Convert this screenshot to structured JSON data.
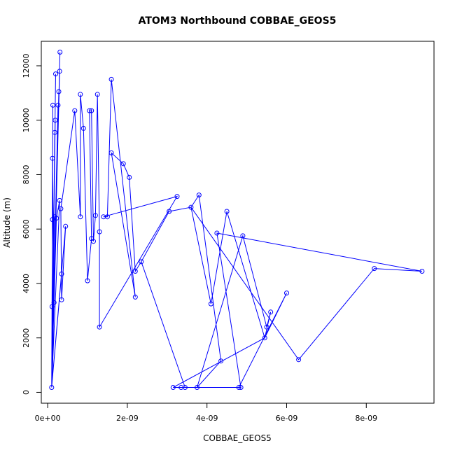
{
  "chart_data": {
    "type": "line",
    "title": "ATOM3 Northbound COBBAE_GEOS5",
    "xlabel": "COBBAE_GEOS5",
    "ylabel": "Altitude (m)",
    "xlim": [
      -1.6e-10,
      9.7e-09
    ],
    "ylim": [
      -400,
      12900
    ],
    "x_ticks": [
      {
        "value": 0,
        "label": "0e+00"
      },
      {
        "value": 2e-09,
        "label": "2e-09"
      },
      {
        "value": 4e-09,
        "label": "4e-09"
      },
      {
        "value": 6e-09,
        "label": "6e-09"
      },
      {
        "value": 8e-09,
        "label": "8e-09"
      }
    ],
    "y_ticks": [
      {
        "value": 0,
        "label": "0"
      },
      {
        "value": 2000,
        "label": "2000"
      },
      {
        "value": 4000,
        "label": "4000"
      },
      {
        "value": 6000,
        "label": "6000"
      },
      {
        "value": 8000,
        "label": "8000"
      },
      {
        "value": 10000,
        "label": "10000"
      },
      {
        "value": 12000,
        "label": "12000"
      }
    ],
    "series_color": "#0000ff",
    "grid": false,
    "series": [
      {
        "points": [
          [
            1e-10,
            180
          ],
          [
            1.1e-10,
            3150
          ],
          [
            1.2e-10,
            6350
          ],
          [
            1.2e-10,
            8600
          ],
          [
            1.3e-10,
            10550
          ],
          [
            1.6e-10,
            3300
          ],
          [
            1.7e-10,
            6450
          ],
          [
            1.8e-10,
            9550
          ],
          [
            1.9e-10,
            10000
          ],
          [
            2e-10,
            11700
          ],
          [
            2.2e-10,
            6400
          ],
          [
            2.6e-10,
            10550
          ],
          [
            2.8e-10,
            11050
          ],
          [
            3e-10,
            11800
          ],
          [
            3e-10,
            7050
          ],
          [
            3.1e-10,
            12500
          ],
          [
            3.3e-10,
            6750
          ],
          [
            3.5e-10,
            3400
          ],
          [
            3.5e-10,
            4350
          ],
          [
            4.5e-10,
            6100
          ],
          [
            6.8e-10,
            10350
          ],
          [
            8.2e-10,
            6450
          ],
          [
            8.2e-10,
            10950
          ],
          [
            9e-10,
            9700
          ],
          [
            1e-09,
            4100
          ],
          [
            1.05e-09,
            10350
          ],
          [
            1.1e-09,
            5650
          ],
          [
            1.1e-09,
            10350
          ],
          [
            1.15e-09,
            5550
          ],
          [
            1.2e-09,
            6500
          ],
          [
            1.25e-09,
            10950
          ],
          [
            1.3e-09,
            5900
          ],
          [
            1.3e-09,
            2400
          ],
          [
            1.4e-09,
            6450
          ],
          [
            1.5e-09,
            6450
          ],
          [
            1.6e-09,
            11500
          ],
          [
            1.6e-09,
            8800
          ],
          [
            1.9e-09,
            8400
          ],
          [
            2.05e-09,
            7900
          ],
          [
            2.2e-09,
            3500
          ],
          [
            2.2e-09,
            4450
          ],
          [
            2.35e-09,
            4800
          ],
          [
            3.05e-09,
            6650
          ],
          [
            3.15e-09,
            180
          ],
          [
            3.25e-09,
            7200
          ],
          [
            3.35e-09,
            180
          ],
          [
            3.45e-09,
            180
          ],
          [
            3.6e-09,
            6800
          ],
          [
            3.75e-09,
            180
          ],
          [
            3.8e-09,
            7250
          ],
          [
            4.1e-09,
            3250
          ],
          [
            4.25e-09,
            5850
          ],
          [
            4.35e-09,
            1150
          ],
          [
            4.5e-09,
            6650
          ],
          [
            4.8e-09,
            180
          ],
          [
            4.85e-09,
            180
          ],
          [
            4.9e-09,
            5750
          ],
          [
            5.45e-09,
            2000
          ],
          [
            5.5e-09,
            2400
          ],
          [
            5.6e-09,
            2950
          ],
          [
            6e-09,
            3650
          ],
          [
            6.3e-09,
            1200
          ],
          [
            8.2e-09,
            4550
          ],
          [
            9.4e-09,
            4450
          ]
        ],
        "path_order": [
          0,
          0,
          1,
          3,
          5,
          0,
          4,
          0,
          6,
          0,
          2,
          0,
          9,
          0,
          18,
          0,
          7,
          0,
          8,
          0,
          11,
          0,
          12,
          0,
          13,
          0,
          15,
          0,
          10,
          14,
          0,
          19,
          17,
          16,
          20,
          21,
          22,
          23,
          24,
          26,
          25,
          27,
          28,
          29,
          30,
          31,
          32,
          44,
          33,
          34,
          35,
          39,
          36,
          37,
          38,
          40,
          41,
          42,
          47,
          49,
          52,
          48,
          56,
          58,
          59,
          57,
          53,
          50,
          47,
          61,
          62,
          63,
          51,
          55,
          45,
          54,
          60,
          57,
          43,
          46,
          41
        ]
      }
    ]
  }
}
